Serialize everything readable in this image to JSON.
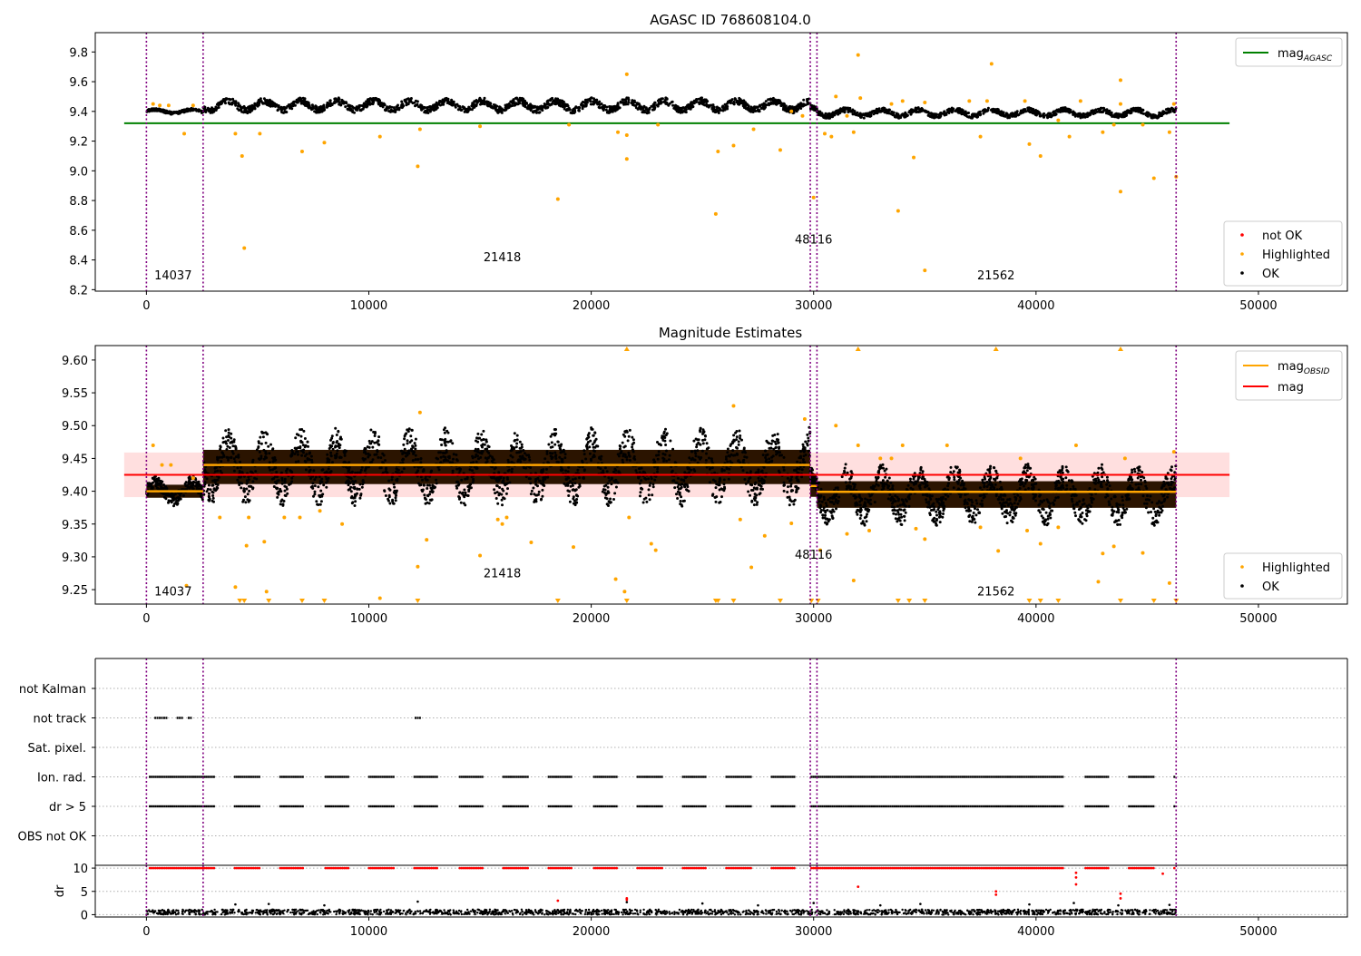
{
  "chart_data": [
    {
      "type": "scatter",
      "title": "AGASC ID 768608104.0",
      "xlabel": "",
      "ylabel": "",
      "xlim": [
        -2300,
        54000
      ],
      "ylim": [
        8.19,
        9.93
      ],
      "xticks": [
        0,
        10000,
        20000,
        30000,
        40000,
        50000
      ],
      "yticks": [
        8.2,
        8.4,
        8.6,
        8.8,
        9.0,
        9.2,
        9.4,
        9.6,
        9.8
      ],
      "vlines": [
        0,
        2550,
        29850,
        30150,
        46300
      ],
      "obsid_labels": [
        {
          "text": "14037",
          "x": 1200,
          "y": 8.27
        },
        {
          "text": "21418",
          "x": 16000,
          "y": 8.39
        },
        {
          "text": "48116",
          "x": 30000,
          "y": 8.51
        },
        {
          "text": "21562",
          "x": 38200,
          "y": 8.27
        }
      ],
      "hlines": [
        {
          "name": "mag_AGASC",
          "y": 9.32,
          "color": "#008000"
        }
      ],
      "legend_lines": [
        {
          "text": "mag",
          "sub": "AGASC",
          "color": "#008000",
          "style": "line"
        }
      ],
      "legend_points": [
        {
          "text": "not OK",
          "color": "#ff0000"
        },
        {
          "text": "Highlighted",
          "color": "#ffa500"
        },
        {
          "text": "OK",
          "color": "#000000"
        }
      ],
      "ok_segments": [
        {
          "x0": 0,
          "x1": 2550,
          "center": 9.4,
          "amp": 0.02
        },
        {
          "x0": 2550,
          "x1": 29850,
          "center": 9.44,
          "amp": 0.05
        },
        {
          "x0": 29850,
          "x1": 30150,
          "center": 9.41,
          "amp": 0.03
        },
        {
          "x0": 30150,
          "x1": 46300,
          "center": 9.39,
          "amp": 0.035
        }
      ],
      "highlighted_points": [
        [
          300,
          9.45
        ],
        [
          600,
          9.44
        ],
        [
          1000,
          9.44
        ],
        [
          1700,
          9.25
        ],
        [
          2100,
          9.44
        ],
        [
          4000,
          9.25
        ],
        [
          4300,
          9.1
        ],
        [
          4400,
          8.48
        ],
        [
          5100,
          9.25
        ],
        [
          7000,
          9.13
        ],
        [
          8000,
          9.19
        ],
        [
          10500,
          9.23
        ],
        [
          12200,
          9.03
        ],
        [
          12300,
          9.28
        ],
        [
          15000,
          9.3
        ],
        [
          18500,
          8.81
        ],
        [
          19000,
          9.31
        ],
        [
          21200,
          9.26
        ],
        [
          21600,
          9.24
        ],
        [
          21600,
          9.08
        ],
        [
          21600,
          9.65
        ],
        [
          23000,
          9.31
        ],
        [
          25600,
          8.71
        ],
        [
          25700,
          9.13
        ],
        [
          26400,
          9.17
        ],
        [
          27300,
          9.28
        ],
        [
          28500,
          9.14
        ],
        [
          29000,
          9.4
        ],
        [
          29500,
          9.37
        ],
        [
          30000,
          8.82
        ],
        [
          30500,
          9.25
        ],
        [
          30800,
          9.23
        ],
        [
          31000,
          9.5
        ],
        [
          31500,
          9.37
        ],
        [
          31800,
          9.26
        ],
        [
          32000,
          9.78
        ],
        [
          32100,
          9.49
        ],
        [
          33500,
          9.45
        ],
        [
          33800,
          8.73
        ],
        [
          34500,
          9.09
        ],
        [
          34000,
          9.47
        ],
        [
          35000,
          8.33
        ],
        [
          35000,
          9.46
        ],
        [
          37000,
          9.47
        ],
        [
          37500,
          9.23
        ],
        [
          37800,
          9.47
        ],
        [
          38000,
          9.72
        ],
        [
          39500,
          9.47
        ],
        [
          39700,
          9.18
        ],
        [
          40200,
          9.1
        ],
        [
          41000,
          9.34
        ],
        [
          41500,
          9.23
        ],
        [
          42000,
          9.47
        ],
        [
          43000,
          9.26
        ],
        [
          43500,
          9.31
        ],
        [
          43800,
          9.45
        ],
        [
          43800,
          8.86
        ],
        [
          43800,
          9.61
        ],
        [
          44800,
          9.31
        ],
        [
          45300,
          8.95
        ],
        [
          46000,
          9.26
        ],
        [
          46200,
          9.45
        ],
        [
          46300,
          8.96
        ]
      ]
    },
    {
      "type": "scatter",
      "title": "Magnitude Estimates",
      "xlabel": "",
      "ylabel": "",
      "xlim": [
        -2300,
        54000
      ],
      "ylim": [
        9.228,
        9.622
      ],
      "xticks": [
        0,
        10000,
        20000,
        30000,
        40000,
        50000
      ],
      "yticks": [
        9.25,
        9.3,
        9.35,
        9.4,
        9.45,
        9.5,
        9.55,
        9.6
      ],
      "vlines": [
        0,
        2550,
        29850,
        30150,
        46300
      ],
      "obsid_labels": [
        {
          "text": "14037",
          "x": 1200,
          "y": 9.241
        },
        {
          "text": "21418",
          "x": 16000,
          "y": 9.269
        },
        {
          "text": "48116",
          "x": 30000,
          "y": 9.297
        },
        {
          "text": "21562",
          "x": 38200,
          "y": 9.241
        }
      ],
      "band": {
        "y0": 9.391,
        "y1": 9.459,
        "x0": -1000,
        "x1": 48700,
        "color": "#ffc0c0"
      },
      "hlines": [
        {
          "name": "mag",
          "y": 9.425,
          "color": "#ff0000"
        }
      ],
      "obsid_lines": [
        {
          "x0": 0,
          "x1": 2550,
          "y": 9.4
        },
        {
          "x0": 2550,
          "x1": 29850,
          "y": 9.44
        },
        {
          "x0": 29850,
          "x1": 30150,
          "y": 9.408
        },
        {
          "x0": 30150,
          "x1": 46300,
          "y": 9.399
        }
      ],
      "legend_lines": [
        {
          "text": "mag",
          "sub": "OBSID",
          "color": "#ffa500",
          "style": "line"
        },
        {
          "text": "mag",
          "sub": "",
          "color": "#ff0000",
          "style": "line"
        }
      ],
      "legend_points": [
        {
          "text": "Highlighted",
          "color": "#ffa500"
        },
        {
          "text": "OK",
          "color": "#000000"
        }
      ],
      "ok_segments": [
        {
          "x0": 0,
          "x1": 2550,
          "center": 9.4,
          "amp": 0.022
        },
        {
          "x0": 2550,
          "x1": 29850,
          "center": 9.437,
          "amp": 0.058
        },
        {
          "x0": 29850,
          "x1": 30150,
          "center": 9.405,
          "amp": 0.03
        },
        {
          "x0": 30150,
          "x1": 46300,
          "center": 9.395,
          "amp": 0.045
        }
      ],
      "highlighted_points": [
        [
          300,
          9.47
        ],
        [
          700,
          9.44
        ],
        [
          1100,
          9.44
        ],
        [
          1800,
          9.256
        ],
        [
          2100,
          9.42
        ],
        [
          3300,
          9.36
        ],
        [
          4000,
          9.254
        ],
        [
          4500,
          9.317
        ],
        [
          4600,
          9.36
        ],
        [
          5300,
          9.323
        ],
        [
          5400,
          9.247
        ],
        [
          6200,
          9.36
        ],
        [
          6900,
          9.36
        ],
        [
          7800,
          9.37
        ],
        [
          8800,
          9.35
        ],
        [
          10500,
          9.237
        ],
        [
          12200,
          9.285
        ],
        [
          12300,
          9.52
        ],
        [
          12600,
          9.326
        ],
        [
          15000,
          9.302
        ],
        [
          15800,
          9.357
        ],
        [
          16000,
          9.35
        ],
        [
          16200,
          9.36
        ],
        [
          17300,
          9.322
        ],
        [
          19200,
          9.315
        ],
        [
          21100,
          9.266
        ],
        [
          21500,
          9.247
        ],
        [
          21700,
          9.36
        ],
        [
          22700,
          9.32
        ],
        [
          22900,
          9.31
        ],
        [
          26400,
          9.53
        ],
        [
          26700,
          9.357
        ],
        [
          27200,
          9.284
        ],
        [
          27800,
          9.332
        ],
        [
          29000,
          9.351
        ],
        [
          29600,
          9.51
        ],
        [
          30300,
          9.31
        ],
        [
          31000,
          9.5
        ],
        [
          31500,
          9.335
        ],
        [
          31800,
          9.264
        ],
        [
          32000,
          9.47
        ],
        [
          32500,
          9.34
        ],
        [
          33000,
          9.45
        ],
        [
          33500,
          9.45
        ],
        [
          34000,
          9.47
        ],
        [
          34600,
          9.343
        ],
        [
          35000,
          9.327
        ],
        [
          36000,
          9.47
        ],
        [
          37500,
          9.345
        ],
        [
          38300,
          9.309
        ],
        [
          39300,
          9.45
        ],
        [
          39600,
          9.34
        ],
        [
          40200,
          9.32
        ],
        [
          41000,
          9.345
        ],
        [
          41800,
          9.47
        ],
        [
          42800,
          9.262
        ],
        [
          43000,
          9.305
        ],
        [
          43500,
          9.316
        ],
        [
          44000,
          9.45
        ],
        [
          44800,
          9.306
        ],
        [
          46000,
          9.26
        ],
        [
          46200,
          9.46
        ]
      ],
      "clipped_points_top": [
        21600,
        32000,
        38200,
        43800
      ],
      "clipped_points_bottom": [
        4200,
        4400,
        5500,
        7000,
        8000,
        12200,
        18500,
        21600,
        25600,
        25700,
        26400,
        28500,
        29900,
        30200,
        33800,
        34300,
        35000,
        39700,
        40200,
        41000,
        43800,
        45300,
        46300
      ]
    },
    {
      "type": "scatter",
      "title": "",
      "xlabel": "",
      "ylabel": "",
      "xlim": [
        -2300,
        54000
      ],
      "categories": [
        "not Kalman",
        "not track",
        "Sat. pixel.",
        "Ion. rad.",
        "dr > 5",
        "OBS not OK"
      ],
      "vlines": [
        0,
        2550,
        29850,
        30150,
        46300
      ],
      "flag_runs": {
        "not track": [
          [
            400,
            900
          ],
          [
            1400,
            1600
          ],
          [
            1900,
            2050
          ],
          [
            12100,
            12300
          ]
        ],
        "Ion. rad.": "intermittent",
        "dr > 5": "intermittent"
      }
    },
    {
      "type": "scatter",
      "title": "",
      "xlabel": "",
      "ylabel": "dr",
      "xlim": [
        -2300,
        54000
      ],
      "ylim": [
        -0.5,
        10.6
      ],
      "xticks": [
        0,
        10000,
        20000,
        30000,
        40000,
        50000
      ],
      "yticks": [
        0,
        5,
        10
      ],
      "vlines": [
        0,
        2550,
        29850,
        30150,
        46300
      ],
      "red_capped_level": 10,
      "red_points": [
        [
          18500,
          3
        ],
        [
          21600,
          3.5
        ],
        [
          21600,
          3.2
        ],
        [
          32000,
          6
        ],
        [
          38200,
          5
        ],
        [
          38200,
          4.3
        ],
        [
          41800,
          9
        ],
        [
          41800,
          8
        ],
        [
          41800,
          6.5
        ],
        [
          43800,
          4.5
        ],
        [
          43800,
          3.5
        ],
        [
          45700,
          8.8
        ]
      ],
      "black_points": [
        [
          4000,
          2.2
        ],
        [
          5500,
          2.3
        ],
        [
          8000,
          2.0
        ],
        [
          12200,
          2.8
        ],
        [
          21600,
          2.7
        ],
        [
          25000,
          2.4
        ],
        [
          27500,
          2.0
        ],
        [
          30000,
          2.5
        ],
        [
          33000,
          2.0
        ],
        [
          34800,
          2.3
        ],
        [
          39700,
          2.2
        ],
        [
          41700,
          2.5
        ],
        [
          43700,
          2.0
        ],
        [
          46000,
          2.1
        ]
      ]
    }
  ]
}
